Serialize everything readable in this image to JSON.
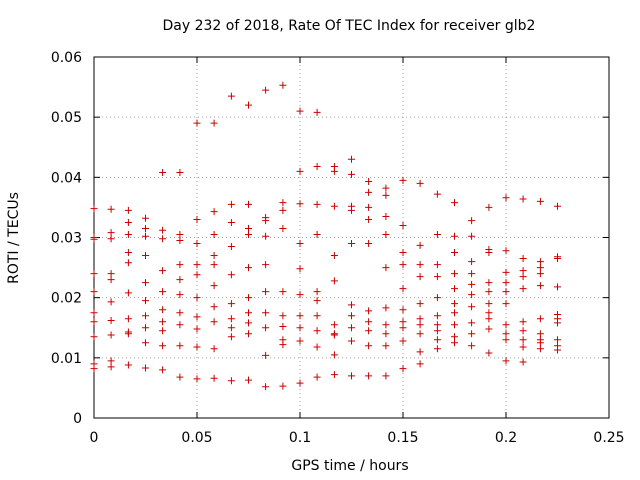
{
  "chart_data": {
    "type": "scatter",
    "title": "Day 232 of 2018, Rate Of TEC Index for receiver glb2",
    "xlabel": "GPS time / hours",
    "ylabel": "ROTI / TECUs",
    "xlim": [
      0,
      0.25
    ],
    "ylim": [
      0,
      0.06
    ],
    "x_ticks": [
      0,
      0.05,
      0.1,
      0.15,
      0.2,
      0.25
    ],
    "x_tick_labels": [
      "0",
      "0.05",
      "0.1",
      "0.15",
      "0.2",
      "0.25"
    ],
    "y_ticks": [
      0,
      0.01,
      0.02,
      0.03,
      0.04,
      0.05,
      0.06
    ],
    "y_tick_labels": [
      "0",
      "0.01",
      "0.02",
      "0.03",
      "0.04",
      "0.05",
      "0.06"
    ],
    "grid": true,
    "marker": "plus",
    "color": "#cc0000",
    "series": [
      {
        "name": "glb2",
        "x": [
          0.0,
          0.0,
          0.0,
          0.0,
          0.0,
          0.0,
          0.0,
          0.0,
          0.0,
          0.0,
          0.0083,
          0.0083,
          0.0083,
          0.0083,
          0.0083,
          0.0083,
          0.0083,
          0.0083,
          0.0083,
          0.0083,
          0.0167,
          0.0167,
          0.0167,
          0.0167,
          0.0167,
          0.0167,
          0.0167,
          0.0167,
          0.0167,
          0.0167,
          0.025,
          0.025,
          0.025,
          0.025,
          0.025,
          0.025,
          0.025,
          0.025,
          0.025,
          0.025,
          0.0333,
          0.0333,
          0.0333,
          0.0333,
          0.0333,
          0.0333,
          0.0333,
          0.0333,
          0.0333,
          0.0333,
          0.0417,
          0.0417,
          0.0417,
          0.0417,
          0.0417,
          0.0417,
          0.0417,
          0.0417,
          0.0417,
          0.0417,
          0.05,
          0.05,
          0.05,
          0.05,
          0.05,
          0.05,
          0.05,
          0.05,
          0.05,
          0.05,
          0.0583,
          0.0583,
          0.0583,
          0.0583,
          0.0583,
          0.0583,
          0.0583,
          0.0583,
          0.0583,
          0.0583,
          0.0667,
          0.0667,
          0.0667,
          0.0667,
          0.0667,
          0.0667,
          0.0667,
          0.0667,
          0.0667,
          0.0667,
          0.075,
          0.075,
          0.075,
          0.075,
          0.075,
          0.075,
          0.075,
          0.075,
          0.075,
          0.075,
          0.0833,
          0.0833,
          0.0833,
          0.0833,
          0.0833,
          0.0833,
          0.0833,
          0.0833,
          0.0833,
          0.0833,
          0.0917,
          0.0917,
          0.0917,
          0.0917,
          0.0917,
          0.0917,
          0.0917,
          0.0917,
          0.0917,
          0.0917,
          0.1,
          0.1,
          0.1,
          0.1,
          0.1,
          0.1,
          0.1,
          0.1,
          0.1,
          0.1,
          0.1083,
          0.1083,
          0.1083,
          0.1083,
          0.1083,
          0.1083,
          0.1083,
          0.1083,
          0.1083,
          0.1083,
          0.1167,
          0.1167,
          0.1167,
          0.1167,
          0.1167,
          0.1167,
          0.1167,
          0.1167,
          0.1167,
          0.1167,
          0.125,
          0.125,
          0.125,
          0.125,
          0.125,
          0.125,
          0.125,
          0.125,
          0.125,
          0.125,
          0.1333,
          0.1333,
          0.1333,
          0.1333,
          0.1333,
          0.1333,
          0.1333,
          0.1333,
          0.1333,
          0.1333,
          0.1417,
          0.1417,
          0.1417,
          0.1417,
          0.1417,
          0.1417,
          0.1417,
          0.1417,
          0.1417,
          0.1417,
          0.15,
          0.15,
          0.15,
          0.15,
          0.15,
          0.15,
          0.15,
          0.15,
          0.15,
          0.15,
          0.1583,
          0.1583,
          0.1583,
          0.1583,
          0.1583,
          0.1583,
          0.1583,
          0.1583,
          0.1583,
          0.1583,
          0.1667,
          0.1667,
          0.1667,
          0.1667,
          0.1667,
          0.1667,
          0.1667,
          0.1667,
          0.1667,
          0.1667,
          0.175,
          0.175,
          0.175,
          0.175,
          0.175,
          0.175,
          0.175,
          0.175,
          0.175,
          0.175,
          0.1833,
          0.1833,
          0.1833,
          0.1833,
          0.1833,
          0.1833,
          0.1833,
          0.1833,
          0.1833,
          0.1833,
          0.1917,
          0.1917,
          0.1917,
          0.1917,
          0.1917,
          0.1917,
          0.1917,
          0.1917,
          0.1917,
          0.1917,
          0.2,
          0.2,
          0.2,
          0.2,
          0.2,
          0.2,
          0.2,
          0.2,
          0.2,
          0.2,
          0.2083,
          0.2083,
          0.2083,
          0.2083,
          0.2083,
          0.2083,
          0.2083,
          0.2083,
          0.2083,
          0.2083,
          0.2167,
          0.2167,
          0.2167,
          0.2167,
          0.2167,
          0.2167,
          0.2167,
          0.2167,
          0.2167,
          0.2167,
          0.225,
          0.225,
          0.225,
          0.225,
          0.225,
          0.225,
          0.225,
          0.225,
          0.225,
          0.225
        ],
        "y": [
          0.0348,
          0.03,
          0.0297,
          0.024,
          0.021,
          0.0175,
          0.016,
          0.0135,
          0.009,
          0.0082,
          0.0347,
          0.0308,
          0.0298,
          0.024,
          0.023,
          0.0193,
          0.0162,
          0.0138,
          0.0095,
          0.0085,
          0.0345,
          0.0325,
          0.0305,
          0.0275,
          0.0258,
          0.0208,
          0.0165,
          0.0143,
          0.014,
          0.0088,
          0.0332,
          0.0315,
          0.0302,
          0.027,
          0.0225,
          0.0195,
          0.017,
          0.015,
          0.0125,
          0.0083,
          0.0408,
          0.0312,
          0.0298,
          0.0245,
          0.021,
          0.018,
          0.016,
          0.0145,
          0.012,
          0.008,
          0.0408,
          0.0305,
          0.0295,
          0.0255,
          0.023,
          0.0205,
          0.0175,
          0.0155,
          0.012,
          0.0068,
          0.049,
          0.033,
          0.029,
          0.0255,
          0.0238,
          0.02,
          0.0168,
          0.0148,
          0.0118,
          0.0065,
          0.049,
          0.0343,
          0.0305,
          0.027,
          0.0255,
          0.022,
          0.0185,
          0.016,
          0.0115,
          0.0066,
          0.0535,
          0.0355,
          0.0325,
          0.0285,
          0.0238,
          0.019,
          0.0165,
          0.015,
          0.0135,
          0.0062,
          0.052,
          0.0355,
          0.0315,
          0.0305,
          0.025,
          0.02,
          0.0175,
          0.0158,
          0.014,
          0.0063,
          0.0545,
          0.0333,
          0.0328,
          0.0302,
          0.0255,
          0.021,
          0.0175,
          0.015,
          0.0104,
          0.0052,
          0.0553,
          0.0358,
          0.0345,
          0.0315,
          0.021,
          0.017,
          0.0152,
          0.013,
          0.0122,
          0.0053,
          0.051,
          0.041,
          0.0356,
          0.029,
          0.0248,
          0.0205,
          0.017,
          0.015,
          0.0128,
          0.0058,
          0.0508,
          0.0418,
          0.0355,
          0.0305,
          0.021,
          0.0195,
          0.017,
          0.0145,
          0.0118,
          0.0068,
          0.0418,
          0.041,
          0.0352,
          0.027,
          0.0228,
          0.0155,
          0.014,
          0.0138,
          0.0105,
          0.0072,
          0.043,
          0.0405,
          0.0352,
          0.0345,
          0.029,
          0.0188,
          0.017,
          0.015,
          0.0128,
          0.007,
          0.0393,
          0.0375,
          0.035,
          0.033,
          0.029,
          0.0178,
          0.016,
          0.0145,
          0.012,
          0.007,
          0.0382,
          0.037,
          0.0335,
          0.0305,
          0.025,
          0.0183,
          0.0155,
          0.014,
          0.012,
          0.007,
          0.0395,
          0.032,
          0.0275,
          0.0255,
          0.0215,
          0.018,
          0.016,
          0.015,
          0.0128,
          0.0082,
          0.039,
          0.0287,
          0.0255,
          0.0235,
          0.019,
          0.0165,
          0.0155,
          0.014,
          0.011,
          0.009,
          0.0372,
          0.0305,
          0.0255,
          0.0235,
          0.02,
          0.017,
          0.0155,
          0.0145,
          0.013,
          0.0115,
          0.0358,
          0.0302,
          0.0275,
          0.024,
          0.0215,
          0.019,
          0.0175,
          0.0155,
          0.0135,
          0.0125,
          0.0328,
          0.0302,
          0.026,
          0.024,
          0.0222,
          0.0205,
          0.0185,
          0.0158,
          0.014,
          0.012,
          0.035,
          0.028,
          0.0275,
          0.0225,
          0.021,
          0.019,
          0.0175,
          0.0165,
          0.0148,
          0.0108,
          0.0366,
          0.0278,
          0.0242,
          0.0225,
          0.021,
          0.019,
          0.0155,
          0.014,
          0.013,
          0.0095,
          0.0364,
          0.0265,
          0.0245,
          0.0235,
          0.0215,
          0.016,
          0.0145,
          0.013,
          0.0118,
          0.0093,
          0.036,
          0.026,
          0.025,
          0.024,
          0.022,
          0.0165,
          0.014,
          0.013,
          0.0115,
          0.0125,
          0.0352,
          0.0268,
          0.0265,
          0.0218,
          0.0172,
          0.0165,
          0.0158,
          0.013,
          0.012,
          0.0113
        ]
      }
    ]
  }
}
